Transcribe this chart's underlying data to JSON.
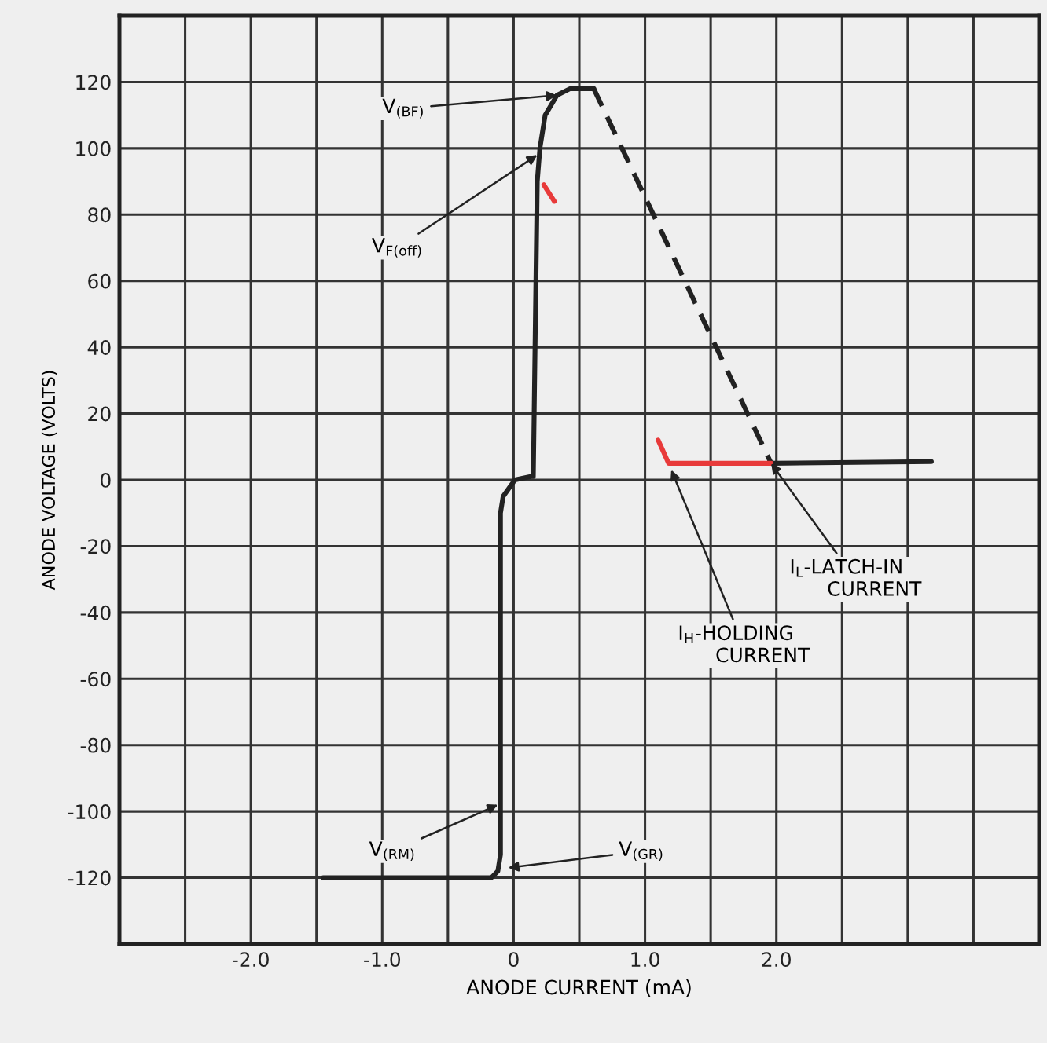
{
  "chart_data": {
    "type": "line",
    "xlabel": "ANODE CURRENT (mA)",
    "ylabel": "ANODE VOLTAGE (VOLTS)",
    "xlim": [
      -3,
      4
    ],
    "ylim": [
      -140,
      140
    ],
    "xticks": [
      {
        "value": -3,
        "label": null
      },
      {
        "value": -2.5,
        "label": null
      },
      {
        "value": -2,
        "label": "-2.0"
      },
      {
        "value": -1.5,
        "label": null
      },
      {
        "value": -1,
        "label": "-1.0"
      },
      {
        "value": -0.5,
        "label": null
      },
      0,
      {
        "value": 0.5,
        "label": null
      },
      {
        "value": 1,
        "label": "1.0"
      },
      {
        "value": 1.5,
        "label": null
      },
      {
        "value": 2,
        "label": "2.0"
      },
      {
        "value": 2.5,
        "label": null
      },
      {
        "value": 3,
        "label": null
      },
      {
        "value": 3.5,
        "label": null
      },
      {
        "value": 4,
        "label": null
      }
    ],
    "yticks": [
      {
        "value": -140,
        "label": null
      },
      -120,
      -100,
      -80,
      -60,
      -40,
      -20,
      0,
      20,
      40,
      60,
      80,
      100,
      120,
      {
        "value": 140,
        "label": null
      }
    ],
    "grid": true,
    "line_style": "solid",
    "series": [
      {
        "color": "#222222",
        "x": [
          -1.45,
          -0.17,
          -0.12,
          -0.1,
          -0.1,
          -0.08,
          0.01,
          0.13,
          0.15,
          0.18,
          0.2,
          0.24,
          0.33,
          0.43,
          0.61
        ],
        "values": [
          -120,
          -120,
          -118,
          -113,
          -10,
          -5,
          0,
          1,
          1,
          90,
          100,
          110,
          116,
          118,
          118
        ]
      },
      {
        "color": "#222222",
        "line_style": "dashed",
        "x": [
          0.61,
          1.96
        ],
        "values": [
          118,
          5
        ]
      },
      {
        "color": "#222222",
        "x": [
          1.96,
          3.18
        ],
        "values": [
          5,
          5.5
        ]
      },
      {
        "color": "#e83a3a",
        "x": [
          1.1,
          1.18,
          1.96
        ],
        "values": [
          12,
          5,
          5
        ]
      },
      {
        "color": "#e83a3a",
        "x": [
          0.23,
          0.31
        ],
        "values": [
          89,
          84
        ]
      }
    ],
    "annotations": [
      {
        "text": "V$_{(BF)}$",
        "x": 0.33,
        "y": 116
      },
      {
        "text": "V$_{F(off)}$",
        "x": 0.18,
        "y": 98
      },
      {
        "text": "V$_{(RM)}$",
        "x": -0.12,
        "y": -98
      },
      {
        "text": "V$_{(GR)}$",
        "x": -0.04,
        "y": -117
      },
      {
        "text": "I$_{H}$-HOLDING\n      CURRENT",
        "x": 1.2,
        "y": 3
      },
      {
        "text": "I$_{L}$-LATCH-IN\n      CURRENT",
        "x": 1.96,
        "y": 5
      }
    ]
  }
}
